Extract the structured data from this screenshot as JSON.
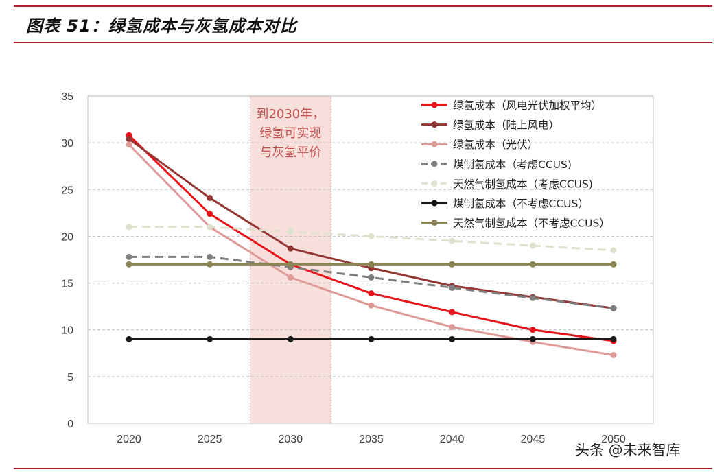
{
  "header": {
    "title": "图表 51：绿氢成本与灰氢成本对比"
  },
  "annotation": [
    "到2030年，",
    "绿氢可实现",
    "与灰氢平价"
  ],
  "watermark": "头条 @未来智库",
  "chart_data": {
    "type": "line",
    "title": "",
    "xlabel": "",
    "ylabel": "",
    "x": [
      "2020",
      "2025",
      "2030",
      "2035",
      "2040",
      "2045",
      "2050"
    ],
    "xlim": [
      2020,
      2050
    ],
    "ylim": [
      0,
      35
    ],
    "yticks": [
      "0",
      "5",
      "10",
      "15",
      "20",
      "25",
      "30",
      "35"
    ],
    "grid": "horizontal-dashed",
    "legend_position": "top-right",
    "highlight_band": {
      "from": 2027.5,
      "to": 2032.5
    },
    "series": [
      {
        "name": "绿氢成本（风电光伏加权平均）",
        "color": "#e8131b",
        "dash": "solid",
        "values": [
          30.8,
          22.4,
          17.0,
          13.9,
          11.9,
          10.0,
          8.8
        ]
      },
      {
        "name": "绿氢成本（陆上风电）",
        "color": "#943634",
        "dash": "solid",
        "values": [
          30.4,
          24.1,
          18.7,
          16.6,
          14.7,
          13.5,
          12.3
        ]
      },
      {
        "name": "绿氢成本（光伏）",
        "color": "#de9a96",
        "dash": "solid",
        "values": [
          29.8,
          21.0,
          15.6,
          12.6,
          10.3,
          8.7,
          7.3
        ]
      },
      {
        "name": "煤制氢成本（考虑CCUS)",
        "color": "#7f7f7f",
        "dash": "dashed",
        "values": [
          17.8,
          17.8,
          16.7,
          15.6,
          14.5,
          13.4,
          12.3
        ]
      },
      {
        "name": "天然气制氢成本（考虑CCUS)",
        "color": "#dfe1cd",
        "dash": "dashed",
        "values": [
          21.0,
          21.0,
          20.5,
          20.0,
          19.5,
          19.0,
          18.5
        ]
      },
      {
        "name": "煤制氢成本（不考虑CCUS）",
        "color": "#1a1a1a",
        "dash": "solid",
        "values": [
          9.0,
          9.0,
          9.0,
          9.0,
          9.0,
          9.0,
          9.0
        ]
      },
      {
        "name": "天然气制氢成本（不考虑CCUS）",
        "color": "#8b8454",
        "dash": "solid",
        "values": [
          17.0,
          17.0,
          17.0,
          17.0,
          17.0,
          17.0,
          17.0
        ]
      }
    ]
  }
}
